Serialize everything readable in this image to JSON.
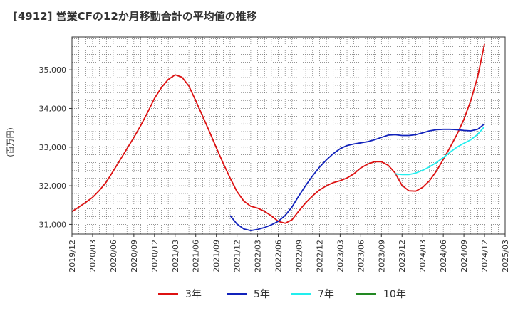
{
  "chart_data": {
    "type": "line",
    "title": "[4912]  営業CFの12か月移動合計の平均値の推移",
    "ylabel": "(百万円)",
    "xlabel": "",
    "ylim": [
      30750,
      35850
    ],
    "yticks": [
      31000,
      32000,
      33000,
      34000,
      35000
    ],
    "ytick_labels": [
      "31,000",
      "32,000",
      "33,000",
      "34,000",
      "35,000"
    ],
    "xlim": [
      "2019-12",
      "2025-03"
    ],
    "xticks": [
      "2019/12",
      "2020/03",
      "2020/06",
      "2020/09",
      "2020/12",
      "2021/03",
      "2021/06",
      "2021/09",
      "2021/12",
      "2022/03",
      "2022/06",
      "2022/09",
      "2022/12",
      "2023/03",
      "2023/06",
      "2023/09",
      "2023/12",
      "2024/03",
      "2024/06",
      "2024/09",
      "2024/12",
      "2025/03"
    ],
    "grid": true,
    "legend": "bottom",
    "series": [
      {
        "name": "3年",
        "color": "#dd1111",
        "x": [
          "2019-12",
          "2020-01",
          "2020-02",
          "2020-03",
          "2020-04",
          "2020-05",
          "2020-06",
          "2020-07",
          "2020-08",
          "2020-09",
          "2020-10",
          "2020-11",
          "2020-12",
          "2021-01",
          "2021-02",
          "2021-03",
          "2021-04",
          "2021-05",
          "2021-06",
          "2021-07",
          "2021-08",
          "2021-09",
          "2021-10",
          "2021-11",
          "2021-12",
          "2022-01",
          "2022-02",
          "2022-03",
          "2022-04",
          "2022-05",
          "2022-06",
          "2022-07",
          "2022-08",
          "2022-09",
          "2022-10",
          "2022-11",
          "2022-12",
          "2023-01",
          "2023-02",
          "2023-03",
          "2023-04",
          "2023-05",
          "2023-06",
          "2023-07",
          "2023-08",
          "2023-09",
          "2023-10",
          "2023-11",
          "2023-12",
          "2024-01",
          "2024-02",
          "2024-03",
          "2024-04",
          "2024-05",
          "2024-06",
          "2024-07",
          "2024-08",
          "2024-09",
          "2024-10",
          "2024-11",
          "2024-12"
        ],
        "values": [
          31330,
          31450,
          31570,
          31700,
          31880,
          32100,
          32380,
          32670,
          32960,
          33250,
          33560,
          33900,
          34260,
          34540,
          34750,
          34870,
          34810,
          34580,
          34200,
          33800,
          33400,
          32980,
          32580,
          32200,
          31850,
          31600,
          31470,
          31420,
          31340,
          31220,
          31080,
          31030,
          31120,
          31350,
          31560,
          31740,
          31890,
          32000,
          32080,
          32130,
          32200,
          32310,
          32460,
          32560,
          32620,
          32620,
          32530,
          32330,
          32010,
          31870,
          31860,
          31960,
          32130,
          32380,
          32680,
          33000,
          33330,
          33720,
          34200,
          34820,
          35670
        ]
      },
      {
        "name": "5年",
        "color": "#1122bb",
        "x": [
          "2021-11",
          "2021-12",
          "2022-01",
          "2022-02",
          "2022-03",
          "2022-04",
          "2022-05",
          "2022-06",
          "2022-07",
          "2022-08",
          "2022-09",
          "2022-10",
          "2022-11",
          "2022-12",
          "2023-01",
          "2023-02",
          "2023-03",
          "2023-04",
          "2023-05",
          "2023-06",
          "2023-07",
          "2023-08",
          "2023-09",
          "2023-10",
          "2023-11",
          "2023-12",
          "2024-01",
          "2024-02",
          "2024-03",
          "2024-04",
          "2024-05",
          "2024-06",
          "2024-07",
          "2024-08",
          "2024-09",
          "2024-10",
          "2024-11",
          "2024-12"
        ],
        "values": [
          31230,
          31010,
          30880,
          30840,
          30870,
          30920,
          30990,
          31080,
          31230,
          31450,
          31740,
          32010,
          32260,
          32480,
          32670,
          32830,
          32960,
          33040,
          33080,
          33110,
          33140,
          33190,
          33250,
          33310,
          33320,
          33300,
          33300,
          33320,
          33370,
          33420,
          33450,
          33460,
          33460,
          33450,
          33430,
          33420,
          33460,
          33600
        ]
      },
      {
        "name": "7年",
        "color": "#22eeee",
        "x": [
          "2023-11",
          "2023-12",
          "2024-01",
          "2024-02",
          "2024-03",
          "2024-04",
          "2024-05",
          "2024-06",
          "2024-07",
          "2024-08",
          "2024-09",
          "2024-10",
          "2024-11",
          "2024-12"
        ],
        "values": [
          32310,
          32290,
          32290,
          32330,
          32400,
          32490,
          32600,
          32730,
          32870,
          33000,
          33100,
          33190,
          33330,
          33530
        ]
      },
      {
        "name": "10年",
        "color": "#228822",
        "x": [],
        "values": []
      }
    ]
  }
}
